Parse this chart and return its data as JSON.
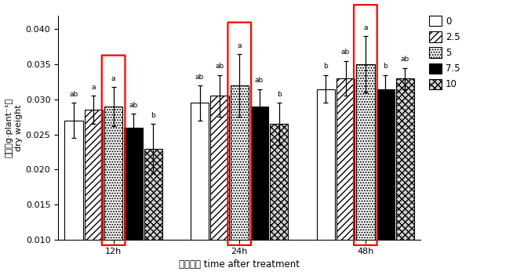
{
  "groups": [
    "12h",
    "24h",
    "48h"
  ],
  "series_labels": [
    "0",
    "2.5",
    "5",
    "7.5",
    "10"
  ],
  "bar_values": [
    [
      0.027,
      0.0285,
      0.029,
      0.026,
      0.023
    ],
    [
      0.0295,
      0.0305,
      0.032,
      0.029,
      0.0265
    ],
    [
      0.0315,
      0.033,
      0.035,
      0.0315,
      0.033
    ]
  ],
  "bar_errors": [
    [
      0.0025,
      0.002,
      0.0028,
      0.002,
      0.0035
    ],
    [
      0.0025,
      0.003,
      0.0045,
      0.0025,
      0.003
    ],
    [
      0.002,
      0.0025,
      0.004,
      0.002,
      0.0015
    ]
  ],
  "significance_labels": [
    [
      "ab",
      "a",
      "a",
      "ab",
      "b"
    ],
    [
      "ab",
      "ab",
      "a",
      "ab",
      "b"
    ],
    [
      "b",
      "ab",
      "a",
      "b",
      "ab"
    ]
  ],
  "ylim": [
    0.01,
    0.042
  ],
  "yticks": [
    0.01,
    0.015,
    0.02,
    0.025,
    0.03,
    0.035,
    0.04
  ],
  "ylabel_line1": "干重（g·plant⁻¹）",
  "ylabel_line2": "dry weight",
  "xlabel": "处理时间 time after treatment",
  "group_centers": [
    0.32,
    1.05,
    1.78
  ],
  "bar_width": 0.115,
  "xlim": [
    0.0,
    2.1
  ]
}
